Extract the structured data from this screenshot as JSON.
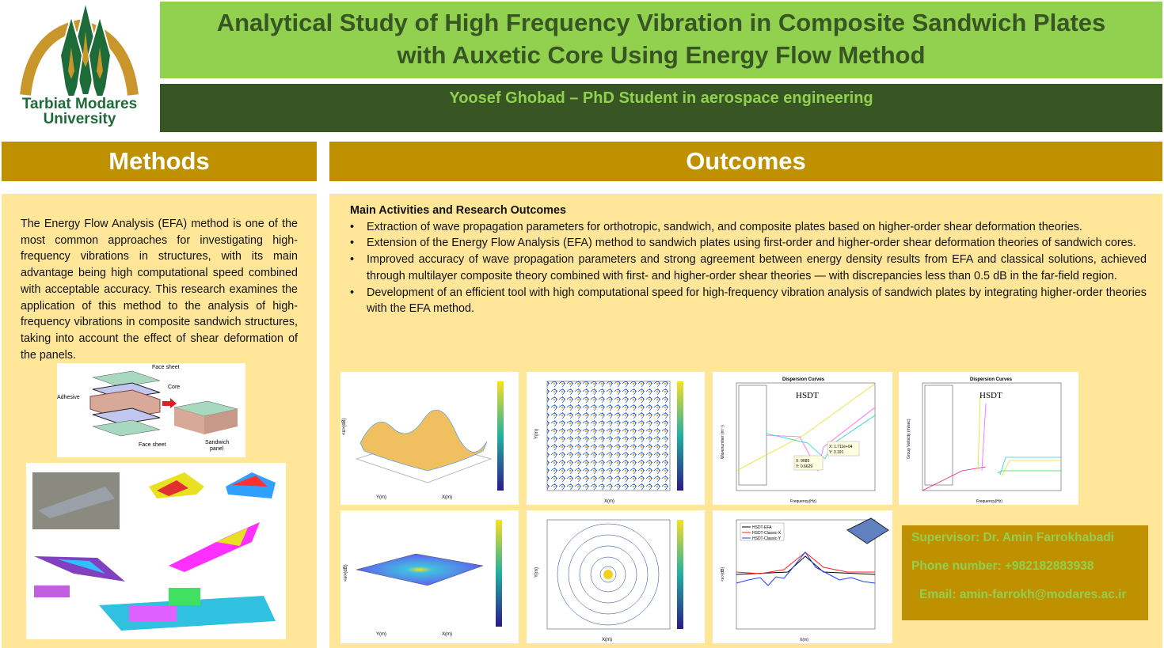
{
  "logo": {
    "line1": "Tarbiat Modares",
    "line2": "University"
  },
  "header": {
    "title_line1": "Analytical Study of High Frequency Vibration in Composite Sandwich Plates",
    "title_line2": "with Auxetic Core Using Energy Flow Method",
    "author": "Yoosef Ghobad – PhD Student in aerospace engineering"
  },
  "methods": {
    "heading": "Methods",
    "body": "The Energy Flow Analysis (EFA) method is one of the most common approaches for investigating high-frequency vibrations in structures, with its main advantage being high computational speed combined with acceptable accuracy. This research examines the application of this method to the analysis of high-frequency vibrations in composite sandwich structures, taking into account the effect of shear deformation of the panels.",
    "figure_labels": {
      "face_top": "Face sheet",
      "core": "Core",
      "adhesive": "Adhesive",
      "face_bottom": "Face sheet",
      "sandwich_1": "Sandwich",
      "sandwich_2": "panel"
    }
  },
  "outcomes": {
    "heading": "Outcomes",
    "subheading": "Main Activities and Research Outcomes",
    "bullets": [
      "Extraction of wave propagation parameters for orthotropic, sandwich, and composite plates based on higher-order shear deformation theories.",
      "Extension of the Energy Flow Analysis (EFA) method to sandwich plates using first-order and higher-order shear deformation theories of sandwich cores.",
      "Improved accuracy of wave propagation parameters and strong agreement between energy density results from EFA and classical solutions, achieved through multilayer composite theory combined with first- and higher-order shear theories — with discrepancies less than 0.5 dB in the far-field region.",
      "Development of an efficient tool with high computational speed for high-frequency vibration analysis of sandwich plates by integrating higher-order theories with the EFA method."
    ],
    "figures": {
      "dispersion_title": "Dispersion Curves",
      "hsdt": "HSDT",
      "freq_label": "Frequency(Hz)",
      "wavenumber_label": "Wavenumber (m⁻¹)",
      "group_velocity_label": "Group Velocity (m/sec)",
      "dp1": "X: 9085",
      "dp2": "Y: 0.6629",
      "dp3": "X: 1.711e+04",
      "dp4": "Y: 3.191",
      "x_label": "X(m)",
      "y_label": "Y(m)",
      "e_label": "<e>(dB)",
      "legend": [
        "HSDT-EFA",
        "HSDT-Classic-X",
        "HSDT-Classic-Y"
      ],
      "colors": {
        "efa": "#000000",
        "classic_x": "#ff2020",
        "classic_y": "#2040ff"
      }
    }
  },
  "contact": {
    "supervisor": "Supervisor: Dr. Amin Farrokhabadi",
    "phone": "Phone number: +982182883938",
    "email": "Email: amin-farrokh@modares.ac.ir"
  },
  "colors": {
    "title_bg": "#92d050",
    "dark_green": "#375623",
    "gold": "#bf9000",
    "panel": "#ffe699"
  }
}
